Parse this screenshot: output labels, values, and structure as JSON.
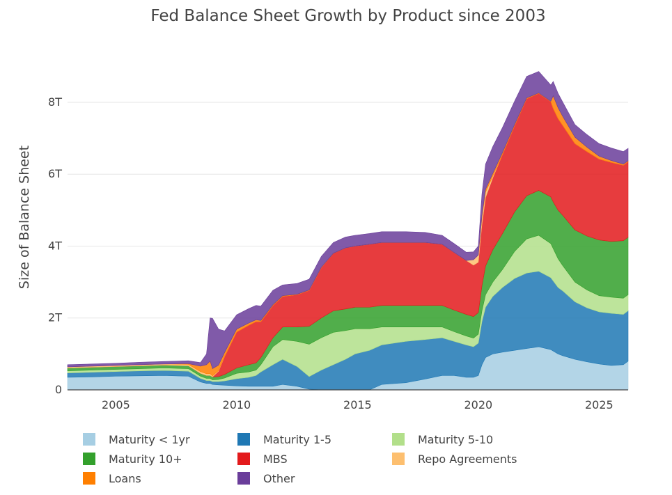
{
  "chart_data": {
    "type": "area",
    "stacked": true,
    "title": "Fed Balance Sheet Growth by Product since 2003",
    "xlabel": "",
    "ylabel": "Size of Balance Sheet",
    "xlim": [
      2003.0,
      2026.2
    ],
    "ylim": [
      0,
      9.2
    ],
    "x_ticks": [
      2005,
      2010,
      2015,
      2020,
      2025
    ],
    "x_tick_labels": [
      "2005",
      "2010",
      "2015",
      "2020",
      "2025"
    ],
    "y_ticks": [
      0,
      2,
      4,
      6,
      8
    ],
    "y_tick_labels": [
      "0",
      "2T",
      "4T",
      "6T",
      "8T"
    ],
    "grid": true,
    "legend_position": "bottom",
    "x": [
      2003.0,
      2004.0,
      2005.0,
      2006.0,
      2007.0,
      2008.0,
      2008.5,
      2008.75,
      2008.9,
      2009.0,
      2009.25,
      2009.5,
      2010.0,
      2010.5,
      2010.8,
      2011.0,
      2011.5,
      2011.9,
      2012.5,
      2013.0,
      2013.5,
      2014.0,
      2014.5,
      2014.9,
      2015.5,
      2016.0,
      2017.0,
      2017.8,
      2018.5,
      2019.0,
      2019.5,
      2019.8,
      2020.0,
      2020.15,
      2020.3,
      2020.6,
      2021.0,
      2021.5,
      2022.0,
      2022.5,
      2023.0,
      2023.1,
      2023.3,
      2023.5,
      2024.0,
      2024.5,
      2025.0,
      2025.5,
      2026.0,
      2026.2
    ],
    "series": [
      {
        "name": "Maturity < 1yr",
        "color": "#a6cee3",
        "values": [
          0.35,
          0.36,
          0.38,
          0.39,
          0.4,
          0.38,
          0.22,
          0.18,
          0.18,
          0.15,
          0.14,
          0.13,
          0.11,
          0.1,
          0.1,
          0.1,
          0.1,
          0.15,
          0.1,
          0.02,
          0.0,
          0.0,
          0.0,
          0.0,
          0.0,
          0.15,
          0.2,
          0.3,
          0.4,
          0.4,
          0.35,
          0.35,
          0.4,
          0.7,
          0.9,
          1.0,
          1.05,
          1.1,
          1.15,
          1.2,
          1.12,
          1.08,
          1.0,
          0.95,
          0.85,
          0.78,
          0.72,
          0.68,
          0.7,
          0.8
        ]
      },
      {
        "name": "Maturity 1-5",
        "color": "#1f78b4",
        "values": [
          0.12,
          0.13,
          0.13,
          0.14,
          0.14,
          0.14,
          0.1,
          0.08,
          0.08,
          0.08,
          0.09,
          0.12,
          0.2,
          0.25,
          0.3,
          0.4,
          0.6,
          0.7,
          0.55,
          0.35,
          0.55,
          0.7,
          0.85,
          1.0,
          1.1,
          1.1,
          1.15,
          1.1,
          1.05,
          0.95,
          0.9,
          0.85,
          0.9,
          1.2,
          1.4,
          1.6,
          1.8,
          2.0,
          2.1,
          2.1,
          2.0,
          1.95,
          1.85,
          1.8,
          1.6,
          1.5,
          1.45,
          1.45,
          1.4,
          1.4
        ]
      },
      {
        "name": "Maturity 5-10",
        "color": "#b2df8a",
        "values": [
          0.06,
          0.06,
          0.06,
          0.06,
          0.07,
          0.07,
          0.06,
          0.06,
          0.06,
          0.05,
          0.06,
          0.08,
          0.15,
          0.15,
          0.15,
          0.2,
          0.5,
          0.55,
          0.7,
          0.9,
          0.9,
          0.9,
          0.8,
          0.7,
          0.6,
          0.5,
          0.4,
          0.35,
          0.3,
          0.27,
          0.25,
          0.24,
          0.25,
          0.3,
          0.35,
          0.4,
          0.5,
          0.75,
          0.95,
          1.0,
          0.95,
          0.9,
          0.8,
          0.7,
          0.55,
          0.5,
          0.45,
          0.45,
          0.45,
          0.45
        ]
      },
      {
        "name": "Maturity 10+",
        "color": "#33a02c",
        "values": [
          0.08,
          0.08,
          0.08,
          0.08,
          0.08,
          0.08,
          0.08,
          0.08,
          0.08,
          0.08,
          0.08,
          0.1,
          0.15,
          0.2,
          0.2,
          0.2,
          0.25,
          0.35,
          0.4,
          0.5,
          0.55,
          0.6,
          0.6,
          0.6,
          0.6,
          0.6,
          0.6,
          0.6,
          0.6,
          0.6,
          0.6,
          0.6,
          0.6,
          0.7,
          0.8,
          0.9,
          1.0,
          1.1,
          1.2,
          1.25,
          1.3,
          1.3,
          1.35,
          1.4,
          1.45,
          1.5,
          1.55,
          1.55,
          1.6,
          1.6
        ]
      },
      {
        "name": "MBS",
        "color": "#e31a1c",
        "values": [
          0,
          0,
          0,
          0,
          0,
          0,
          0,
          0,
          0,
          0,
          0.15,
          0.5,
          1.0,
          1.1,
          1.15,
          1.0,
          0.9,
          0.85,
          0.9,
          1.0,
          1.4,
          1.6,
          1.7,
          1.7,
          1.75,
          1.75,
          1.75,
          1.75,
          1.7,
          1.6,
          1.5,
          1.43,
          1.4,
          1.7,
          1.9,
          2.0,
          2.2,
          2.4,
          2.7,
          2.7,
          2.65,
          2.6,
          2.55,
          2.5,
          2.4,
          2.35,
          2.25,
          2.2,
          2.1,
          2.1
        ]
      },
      {
        "name": "Repo Agreements",
        "color": "#fdbf6f",
        "values": [
          0.03,
          0.03,
          0.03,
          0.03,
          0.03,
          0.04,
          0.05,
          0.05,
          0.05,
          0.03,
          0.02,
          0.01,
          0.0,
          0.0,
          0.0,
          0.0,
          0.0,
          0.0,
          0.0,
          0.0,
          0.0,
          0.0,
          0.0,
          0.0,
          0.0,
          0.0,
          0.0,
          0.0,
          0.0,
          0.0,
          0.0,
          0.15,
          0.2,
          0.2,
          0.15,
          0.05,
          0.0,
          0.0,
          0.0,
          0.0,
          0.0,
          0.0,
          0.0,
          0.0,
          0.0,
          0.0,
          0.0,
          0.0,
          0.0,
          0.0
        ]
      },
      {
        "name": "Loans",
        "color": "#ff7f00",
        "values": [
          0.0,
          0.0,
          0.0,
          0.0,
          0.0,
          0.02,
          0.15,
          0.25,
          0.35,
          0.2,
          0.15,
          0.1,
          0.08,
          0.06,
          0.05,
          0.03,
          0.02,
          0.02,
          0.01,
          0.01,
          0.01,
          0.0,
          0.0,
          0.0,
          0.0,
          0.0,
          0.0,
          0.0,
          0.0,
          0.0,
          0.0,
          0.0,
          0.0,
          0.05,
          0.08,
          0.07,
          0.05,
          0.03,
          0.02,
          0.01,
          0.01,
          0.35,
          0.3,
          0.25,
          0.18,
          0.12,
          0.08,
          0.05,
          0.03,
          0.02
        ]
      },
      {
        "name": "Other",
        "color": "#6a3d9a",
        "values": [
          0.06,
          0.06,
          0.06,
          0.07,
          0.07,
          0.08,
          0.1,
          0.3,
          1.2,
          1.4,
          1.0,
          0.6,
          0.4,
          0.4,
          0.4,
          0.4,
          0.4,
          0.3,
          0.3,
          0.3,
          0.3,
          0.3,
          0.3,
          0.3,
          0.3,
          0.3,
          0.3,
          0.28,
          0.25,
          0.25,
          0.23,
          0.22,
          0.25,
          0.6,
          0.7,
          0.75,
          0.7,
          0.65,
          0.6,
          0.6,
          0.45,
          0.4,
          0.4,
          0.4,
          0.35,
          0.35,
          0.35,
          0.35,
          0.35,
          0.35
        ]
      }
    ]
  }
}
